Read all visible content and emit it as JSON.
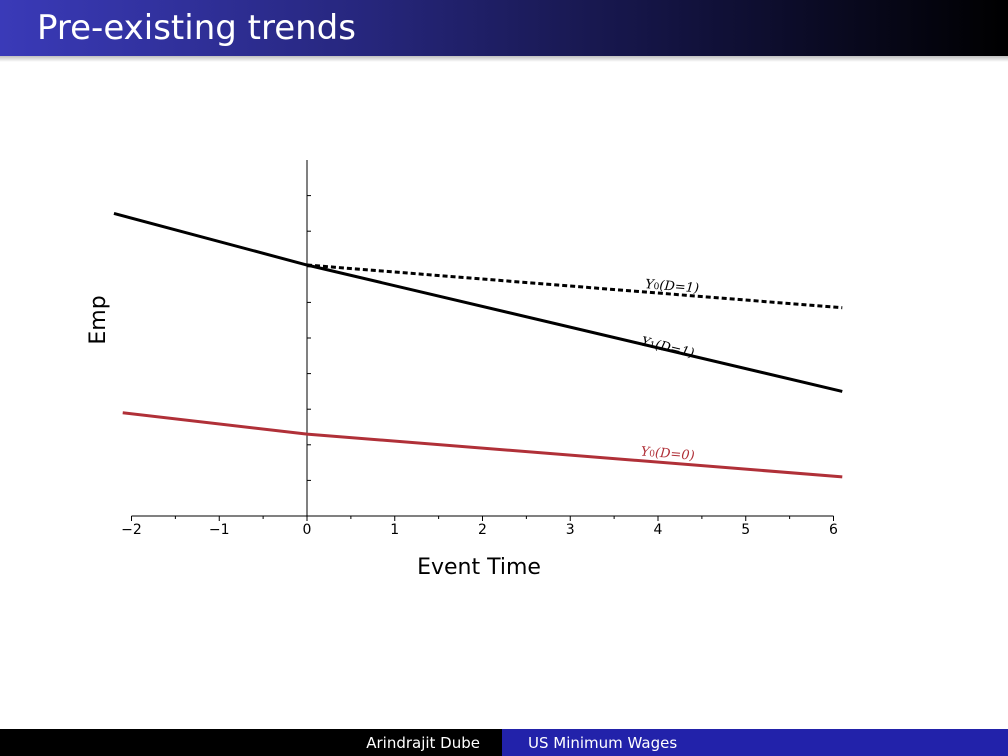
{
  "slide": {
    "title": "Pre-existing trends"
  },
  "footer": {
    "author": "Arindrajit Dube",
    "talk_title": "US Minimum Wages"
  },
  "colors": {
    "black_series": "#000000",
    "red_series": "#b03038",
    "title_bar_start": "#3a3ab8",
    "footer_right": "#2222aa"
  },
  "chart_data": {
    "type": "line",
    "xlabel": "Event Time",
    "ylabel": "Emp",
    "xlim": [
      -2,
      6
    ],
    "ylim": [
      0,
      10
    ],
    "x_ticks": [
      "−2",
      "−1",
      "0",
      "1",
      "2",
      "3",
      "4",
      "5",
      "6"
    ],
    "x_tick_values": [
      -2,
      -1,
      0,
      1,
      2,
      3,
      4,
      5,
      6
    ],
    "y_minor_ticks": [
      1,
      2,
      3,
      4,
      5,
      6,
      7,
      8,
      9
    ],
    "y_tick_labels_shown": false,
    "grid": false,
    "legend": "inline labels",
    "series": [
      {
        "name": "Y1(D=1)",
        "label_main": "Y",
        "label_sub": "1",
        "label_rest": "(D=1)",
        "style": "solid",
        "color": "#000000",
        "x": [
          -2.2,
          0,
          6.1
        ],
        "y": [
          8.5,
          7.05,
          3.5
        ],
        "label_x": 3.8,
        "label_y": 4.8
      },
      {
        "name": "Y0(D=1)",
        "label_main": "Y",
        "label_sub": "0",
        "label_rest": "(D=1)",
        "style": "dashed",
        "color": "#000000",
        "x": [
          0,
          6.1
        ],
        "y": [
          7.05,
          5.85
        ],
        "label_x": 3.85,
        "label_y": 6.4
      },
      {
        "name": "Y0(D=0)",
        "label_main": "Y",
        "label_sub": "0",
        "label_rest": "(D=0)",
        "style": "solid",
        "color": "#b03038",
        "x": [
          -2.1,
          0,
          6.1
        ],
        "y": [
          2.9,
          2.3,
          1.1
        ],
        "label_x": 3.8,
        "label_y": 1.7
      }
    ]
  }
}
